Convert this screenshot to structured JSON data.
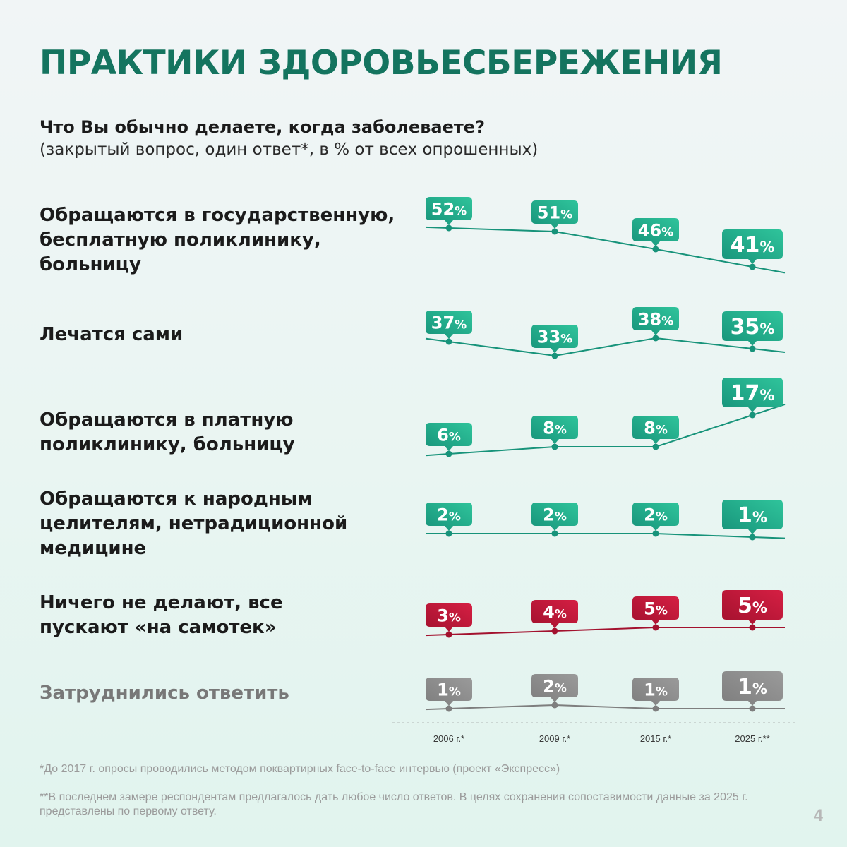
{
  "title": "ПРАКТИКИ ЗДОРОВЬЕСБЕРЕЖЕНИЯ",
  "question": "Что Вы обычно делаете, когда заболеваете?",
  "question_note": "(закрытый вопрос, один ответ*, в % от всех опрошенных)",
  "footnotes": [
    "*До 2017 г. опросы проводились методом поквартирных face-to-face интервью (проект «Экспресс»)",
    "**В последнем замере респондентам предлагалось дать любое число ответов. В целях сохранения сопоставимости данные за 2025 г. представлены по первому ответу."
  ],
  "page_number": "4",
  "colors": {
    "green": "#17937a",
    "green_light": "#2fc49b",
    "red": "#a3112e",
    "red_light": "#d51f43",
    "gray": "#7e7e7e",
    "gray_light": "#9a9a9a"
  },
  "chart_data": {
    "type": "line",
    "x": [
      "2006 г.*",
      "2009 г.*",
      "2015 г.*",
      "2025 г.**"
    ],
    "unit": "%",
    "series": [
      {
        "name": "Обращаются в государственную, бесплатную поликлинику, больницу",
        "values": [
          52,
          51,
          46,
          41
        ],
        "color": "green"
      },
      {
        "name": "Лечатся сами",
        "values": [
          37,
          33,
          38,
          35
        ],
        "color": "green"
      },
      {
        "name": "Обращаются в платную поликлинику, больницу",
        "values": [
          6,
          8,
          8,
          17
        ],
        "color": "green"
      },
      {
        "name": "Обращаются к народным целителям, нетрадиционной медицине",
        "values": [
          2,
          2,
          2,
          1
        ],
        "color": "green"
      },
      {
        "name": "Ничего не делают, все пускают «на самотек»",
        "values": [
          3,
          4,
          5,
          5
        ],
        "color": "red"
      },
      {
        "name": "Затруднились ответить",
        "values": [
          1,
          2,
          1,
          1
        ],
        "color": "gray"
      }
    ]
  }
}
